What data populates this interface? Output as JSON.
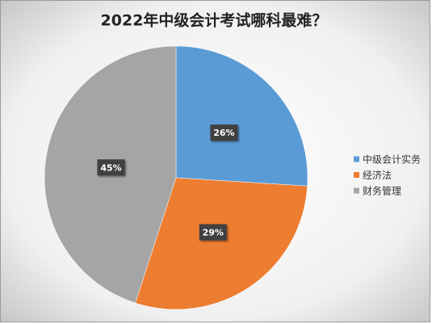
{
  "chart_data": {
    "type": "pie",
    "title": "2022年中级会计考试哪科最难？",
    "categories": [
      "中级会计实务",
      "经济法",
      "财务管理"
    ],
    "values": [
      26,
      29,
      45
    ],
    "value_labels": [
      "26%",
      "29%",
      "45%"
    ],
    "colors": [
      "#5b9bd5",
      "#ed7d31",
      "#a5a5a5"
    ],
    "legend": "right"
  }
}
